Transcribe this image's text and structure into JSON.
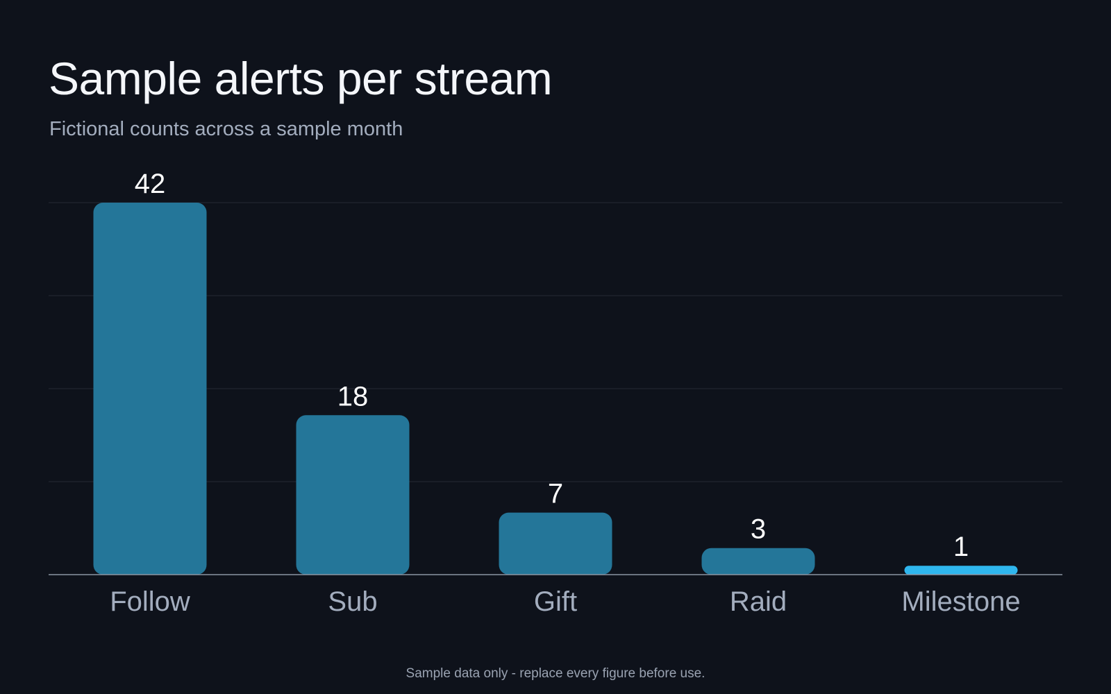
{
  "header": {
    "title": "Sample alerts per stream",
    "subtitle": "Fictional counts across a sample month"
  },
  "footnote": "Sample data only - replace every figure before use.",
  "colors": {
    "background": "#0e121b",
    "bar": "#247699",
    "bar_highlight": "#2fb6ee",
    "gridline": "#252b36",
    "baseline": "#8c95a3",
    "value_label": "#ffffff",
    "category_label": "#a3adbe"
  },
  "chart_data": {
    "type": "bar",
    "title": "Sample alerts per stream",
    "subtitle": "Fictional counts across a sample month",
    "categories": [
      "Follow",
      "Sub",
      "Gift",
      "Raid",
      "Milestone"
    ],
    "values": [
      42,
      18,
      7,
      3,
      1
    ],
    "highlight_category": "Milestone",
    "xlabel": "",
    "ylabel": "",
    "ylim": [
      0,
      42
    ],
    "grid": true,
    "data_labels": true,
    "legend": "none"
  }
}
